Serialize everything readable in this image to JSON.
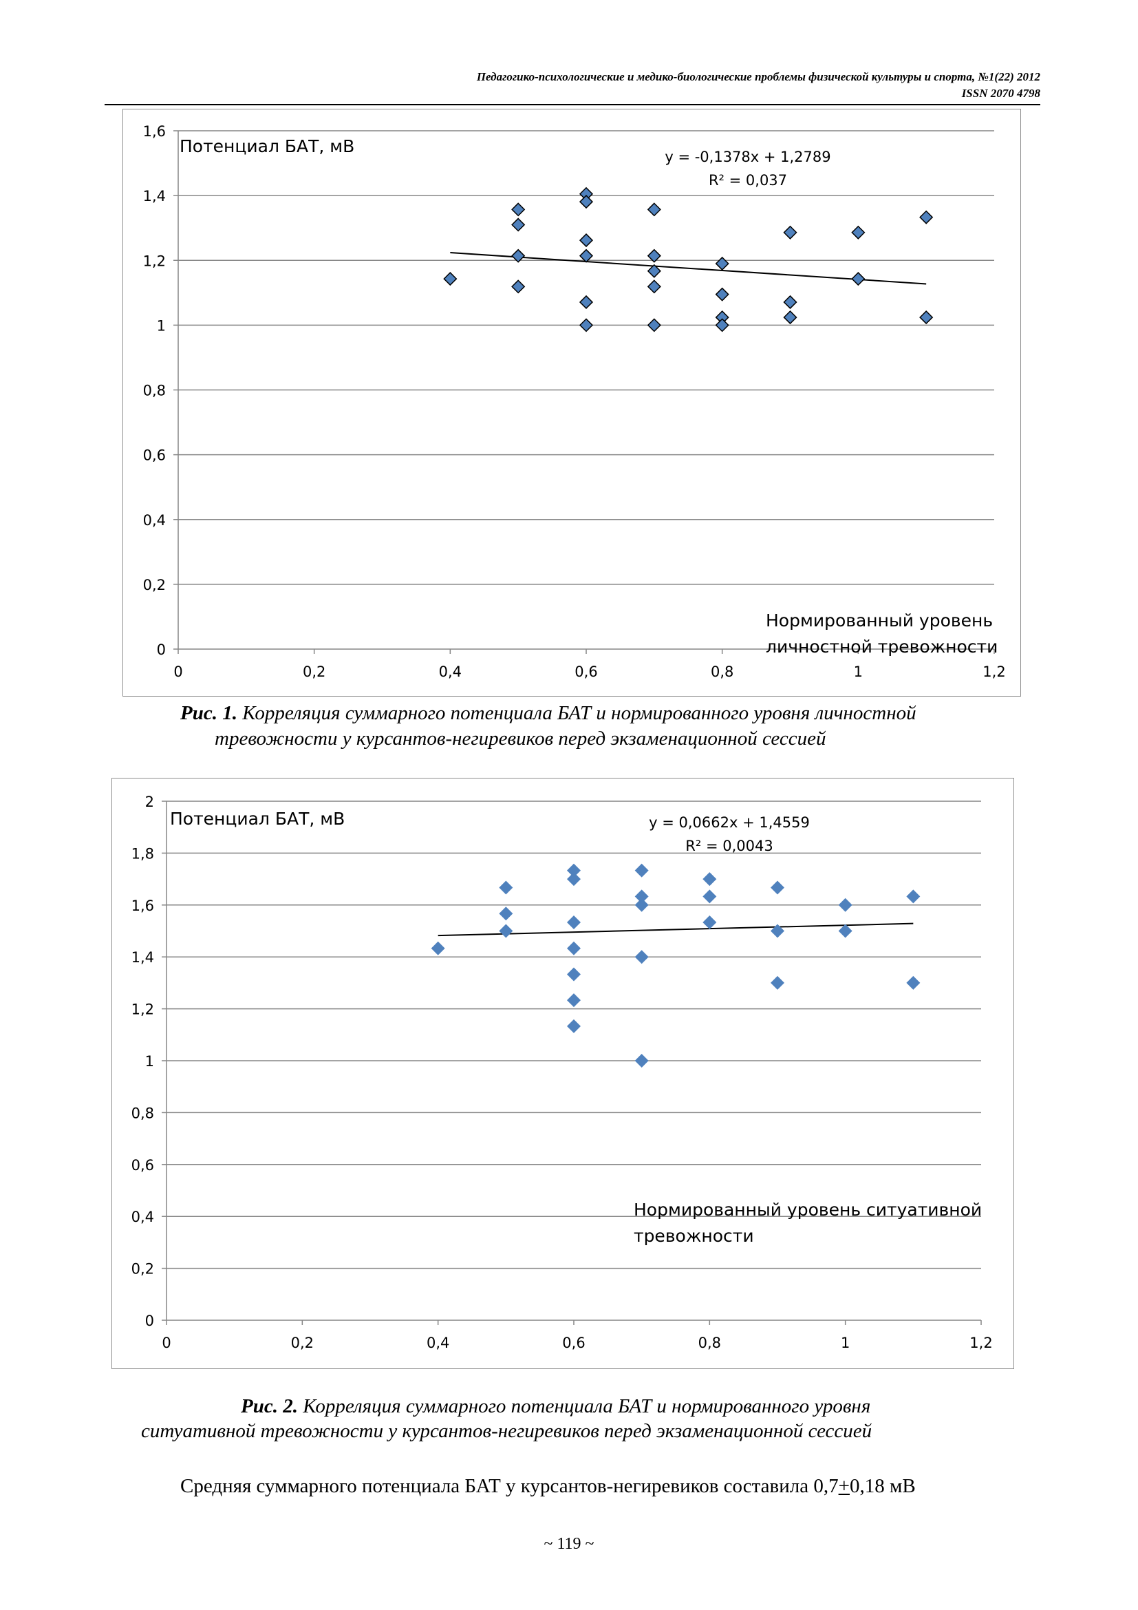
{
  "header": {
    "journal": "Педагогико-психологические и медико-биологические проблемы физической культуры и спорта, №1(22) 2012",
    "issn": "ISSN 2070 4798"
  },
  "chart_data": [
    {
      "type": "scatter",
      "y_label": "Потенциал  БАТ, мВ",
      "x_label_lines": [
        "Нормированный уровень",
        "личностной тревожности"
      ],
      "equation": "y = -0,1378x + 1,2789",
      "r2": "R² = 0,037",
      "xlim": [
        0,
        1.2
      ],
      "ylim": [
        0,
        1.6
      ],
      "x_ticks": [
        "0",
        "0,2",
        "0,4",
        "0,6",
        "0,8",
        "1",
        "1,2"
      ],
      "y_ticks": [
        "0",
        "0,2",
        "0,4",
        "0,6",
        "0,8",
        "1",
        "1,2",
        "1,4",
        "1,6"
      ],
      "grid": true,
      "marker_color": "#4f81bd",
      "marker_outline": "#000000",
      "trend": {
        "slope": -0.1378,
        "intercept": 1.2789,
        "x_range": [
          0.4,
          1.1
        ]
      },
      "points": [
        [
          0.4,
          1.143
        ],
        [
          0.5,
          1.357
        ],
        [
          0.5,
          1.31
        ],
        [
          0.5,
          1.214
        ],
        [
          0.5,
          1.119
        ],
        [
          0.6,
          1.405
        ],
        [
          0.6,
          1.381
        ],
        [
          0.6,
          1.262
        ],
        [
          0.6,
          1.214
        ],
        [
          0.6,
          1.071
        ],
        [
          0.6,
          1.0
        ],
        [
          0.7,
          1.357
        ],
        [
          0.7,
          1.214
        ],
        [
          0.7,
          1.167
        ],
        [
          0.7,
          1.119
        ],
        [
          0.7,
          1.0
        ],
        [
          0.8,
          1.19
        ],
        [
          0.8,
          1.095
        ],
        [
          0.8,
          1.024
        ],
        [
          0.8,
          1.0
        ],
        [
          0.9,
          1.286
        ],
        [
          0.9,
          1.071
        ],
        [
          0.9,
          1.024
        ],
        [
          1.0,
          1.286
        ],
        [
          1.0,
          1.143
        ],
        [
          1.1,
          1.333
        ],
        [
          1.1,
          1.024
        ]
      ]
    },
    {
      "type": "scatter",
      "y_label": "Потенциал БАТ, мВ",
      "x_label_lines": [
        "Нормированный уровень  ситуативной",
        "тревожности"
      ],
      "equation": "y = 0,0662x + 1,4559",
      "r2": "R² = 0,0043",
      "xlim": [
        0,
        1.2
      ],
      "ylim": [
        0,
        2
      ],
      "x_ticks": [
        "0",
        "0,2",
        "0,4",
        "0,6",
        "0,8",
        "1",
        "1,2"
      ],
      "y_ticks": [
        "0",
        "0,2",
        "0,4",
        "0,6",
        "0,8",
        "1",
        "1,2",
        "1,4",
        "1,6",
        "1,8",
        "2"
      ],
      "grid": true,
      "marker_color": "#4f81bd",
      "marker_outline": "none",
      "trend": {
        "slope": 0.0662,
        "intercept": 1.4559,
        "x_range": [
          0.4,
          1.1
        ]
      },
      "points": [
        [
          0.4,
          1.433
        ],
        [
          0.5,
          1.667
        ],
        [
          0.5,
          1.567
        ],
        [
          0.5,
          1.5
        ],
        [
          0.6,
          1.733
        ],
        [
          0.6,
          1.7
        ],
        [
          0.6,
          1.533
        ],
        [
          0.6,
          1.433
        ],
        [
          0.6,
          1.333
        ],
        [
          0.6,
          1.233
        ],
        [
          0.6,
          1.133
        ],
        [
          0.7,
          1.733
        ],
        [
          0.7,
          1.633
        ],
        [
          0.7,
          1.6
        ],
        [
          0.7,
          1.4
        ],
        [
          0.7,
          1.0
        ],
        [
          0.8,
          1.7
        ],
        [
          0.8,
          1.633
        ],
        [
          0.8,
          1.533
        ],
        [
          0.9,
          1.667
        ],
        [
          0.9,
          1.5
        ],
        [
          0.9,
          1.3
        ],
        [
          1.0,
          1.6
        ],
        [
          1.0,
          1.5
        ],
        [
          1.1,
          1.633
        ],
        [
          1.1,
          1.3
        ]
      ]
    }
  ],
  "captions": {
    "fig1_label": "Рис. 1.",
    "fig1_line1": " Корреляция суммарного потенциала БАТ и нормированного уровня личностной",
    "fig1_line2": "тревожности у курсантов-негиревиков перед экзаменационной сессией",
    "fig2_label": "Рис. 2.",
    "fig2_line1": " Корреляция суммарного потенциала БАТ и нормированного уровня",
    "fig2_line2": "ситуативной  тревожности у курсантов-негиревиков перед экзаменационной сессией"
  },
  "body": {
    "text_before": "Средняя суммарного потенциала БАТ у курсантов-негиревиков составила 0,7",
    "plus_minus": "+",
    "text_after": "0,18 мВ"
  },
  "page_number": "~ 119 ~"
}
